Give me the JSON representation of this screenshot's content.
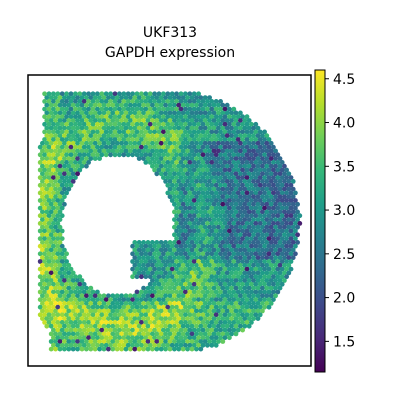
{
  "chart_data": {
    "type": "scatter",
    "title_lines": [
      "UKF313",
      "GAPDH expression"
    ],
    "colormap": "viridis",
    "colormap_stops": [
      "#440154",
      "#482878",
      "#3e4989",
      "#31688e",
      "#26828e",
      "#1f9e89",
      "#35b779",
      "#6ece58",
      "#b5de2b",
      "#fde725"
    ],
    "value_range": [
      1.15,
      4.6
    ],
    "colorbar_ticks": [
      "1.5",
      "2.0",
      "2.5",
      "3.0",
      "3.5",
      "4.0",
      "4.5"
    ],
    "colorbar_tick_values": [
      1.5,
      2.0,
      2.5,
      3.0,
      3.5,
      4.0,
      4.5
    ],
    "spot_value_summary": {
      "min": 1.2,
      "max": 4.6,
      "typical": 3.0
    },
    "frame_color": "#000000"
  }
}
